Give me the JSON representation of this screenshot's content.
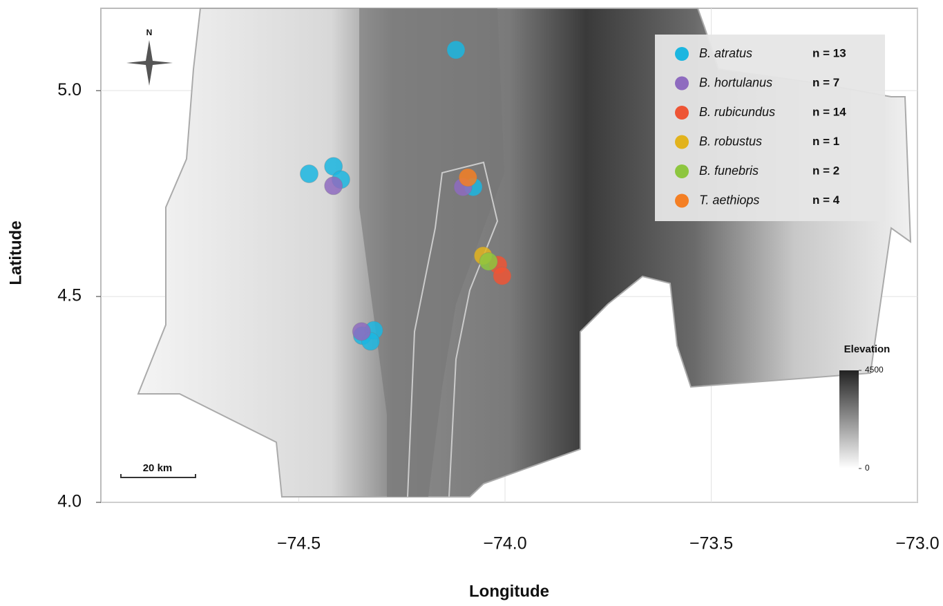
{
  "chart_data": {
    "type": "scatter",
    "x_label": "Longitude",
    "y_label": "Latitude",
    "xlim": [
      -74.98,
      -73.0
    ],
    "ylim": [
      4.0,
      5.2
    ],
    "xticks": [
      {
        "value": -74.5,
        "label": "−74.5"
      },
      {
        "value": -74.0,
        "label": "−74.0"
      },
      {
        "value": -73.5,
        "label": "−73.5"
      },
      {
        "value": -73.0,
        "label": "−73.0"
      }
    ],
    "yticks": [
      {
        "value": 4.0,
        "label": "4.0"
      },
      {
        "value": 4.5,
        "label": "4.5"
      },
      {
        "value": 5.0,
        "label": "5.0"
      }
    ],
    "grid": true,
    "series": [
      {
        "name": "B. atratus",
        "n_label": "n = 13",
        "color": "#1bb6e0",
        "x": [
          -74.119,
          -74.475,
          -74.416,
          -74.398,
          -74.346,
          -74.318,
          -74.326,
          -74.077
        ],
        "values": [
          5.099,
          4.798,
          4.816,
          4.784,
          4.405,
          4.418,
          4.391,
          4.766
        ]
      },
      {
        "name": "B. hortulanus",
        "n_label": "n = 7",
        "color": "#8e6bbf",
        "x": [
          -74.416,
          -74.348,
          -74.102
        ],
        "values": [
          4.769,
          4.415,
          4.766
        ]
      },
      {
        "name": "B. rubicundus",
        "n_label": "n = 14",
        "color": "#ee5535",
        "x": [
          -74.017,
          -74.007
        ],
        "values": [
          4.577,
          4.55
        ]
      },
      {
        "name": "B. robustus",
        "n_label": "n = 1",
        "color": "#e2b31d",
        "x": [
          -74.053
        ],
        "values": [
          4.599
        ]
      },
      {
        "name": "B. funebris",
        "n_label": "n = 2",
        "color": "#8dc63f",
        "x": [
          -74.04
        ],
        "values": [
          4.585
        ]
      },
      {
        "name": "T. aethiops",
        "n_label": "n = 4",
        "color": "#f47f24",
        "x": [
          -74.09
        ],
        "values": [
          4.789
        ]
      }
    ],
    "colorbar": {
      "title": "Elevation",
      "ticks": [
        0,
        4500
      ]
    },
    "scale_bar": "20 km",
    "compass": "N"
  }
}
